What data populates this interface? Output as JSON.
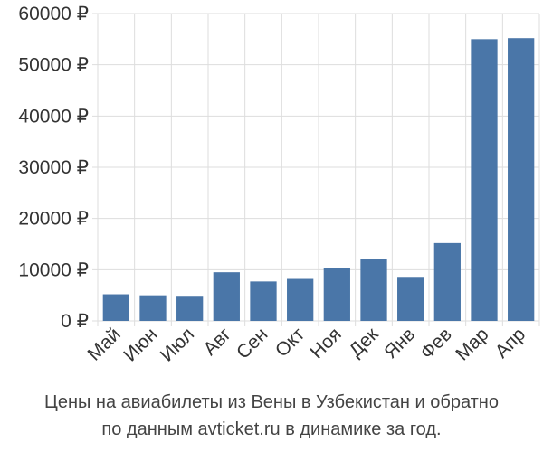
{
  "caption": {
    "line1": "Цены на авиабилеты из Вены в Узбекистан и обратно",
    "line2": "по данным avticket.ru в динамике за год."
  },
  "colors": {
    "bar": "#4a76a8",
    "grid": "#dddddd",
    "text": "#333333"
  },
  "chart_data": {
    "type": "bar",
    "categories": [
      "Май",
      "Июн",
      "Июл",
      "Авг",
      "Сен",
      "Окт",
      "Ноя",
      "Дек",
      "Янв",
      "Фев",
      "Мар",
      "Апр"
    ],
    "values": [
      5200,
      5000,
      4900,
      9500,
      7700,
      8200,
      10300,
      12100,
      8600,
      15200,
      55000,
      55200
    ],
    "title": "",
    "xlabel": "",
    "ylabel": "",
    "ylim": [
      0,
      60000
    ],
    "yticks": [
      0,
      10000,
      20000,
      30000,
      40000,
      50000,
      60000
    ],
    "ytick_labels": [
      "0 ₽",
      "10000 ₽",
      "20000 ₽",
      "30000 ₽",
      "40000 ₽",
      "50000 ₽",
      "60000 ₽"
    ],
    "grid": true,
    "legend": "none"
  }
}
